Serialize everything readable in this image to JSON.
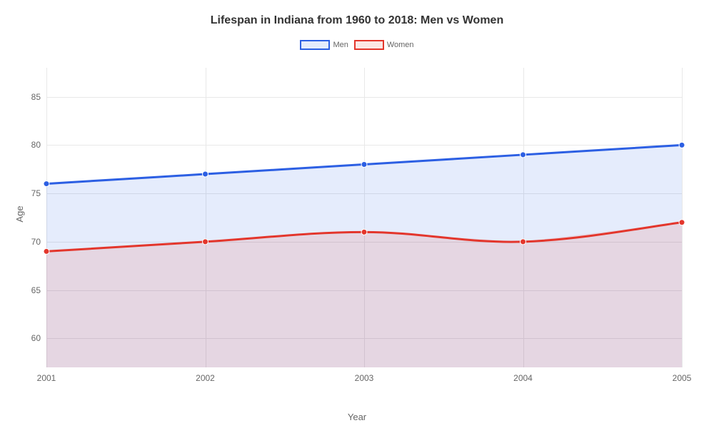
{
  "chart": {
    "type": "line-area",
    "title": "Lifespan in Indiana from 1960 to 2018: Men vs Women",
    "title_fontsize": 16,
    "title_weight": 700,
    "title_color": "#333333",
    "background_color": "#ffffff",
    "plot_background": "#ffffff",
    "grid_color": "#e8e8e8",
    "axis_text_color": "#666666",
    "xlabel": "Year",
    "ylabel": "Age",
    "label_fontsize": 13,
    "tick_fontsize": 12,
    "x_categories": [
      "2001",
      "2002",
      "2003",
      "2004",
      "2005"
    ],
    "ylim": [
      57,
      88
    ],
    "yticks": [
      60,
      65,
      70,
      75,
      80,
      85
    ],
    "line_width": 3,
    "marker_radius": 4,
    "legend": {
      "position": "top-center",
      "swatch_width": 42,
      "swatch_height": 14,
      "fontsize": 11
    },
    "series": [
      {
        "name": "Men",
        "values": [
          76,
          77,
          78,
          79,
          80
        ],
        "line_color": "#2c5fe3",
        "marker_color": "#2c5fe3",
        "fill_color": "rgba(44,95,227,0.12)"
      },
      {
        "name": "Women",
        "values": [
          69,
          70,
          71,
          70,
          72
        ],
        "line_color": "#e3362c",
        "marker_color": "#e3362c",
        "fill_color": "rgba(227,54,44,0.12)"
      }
    ]
  }
}
